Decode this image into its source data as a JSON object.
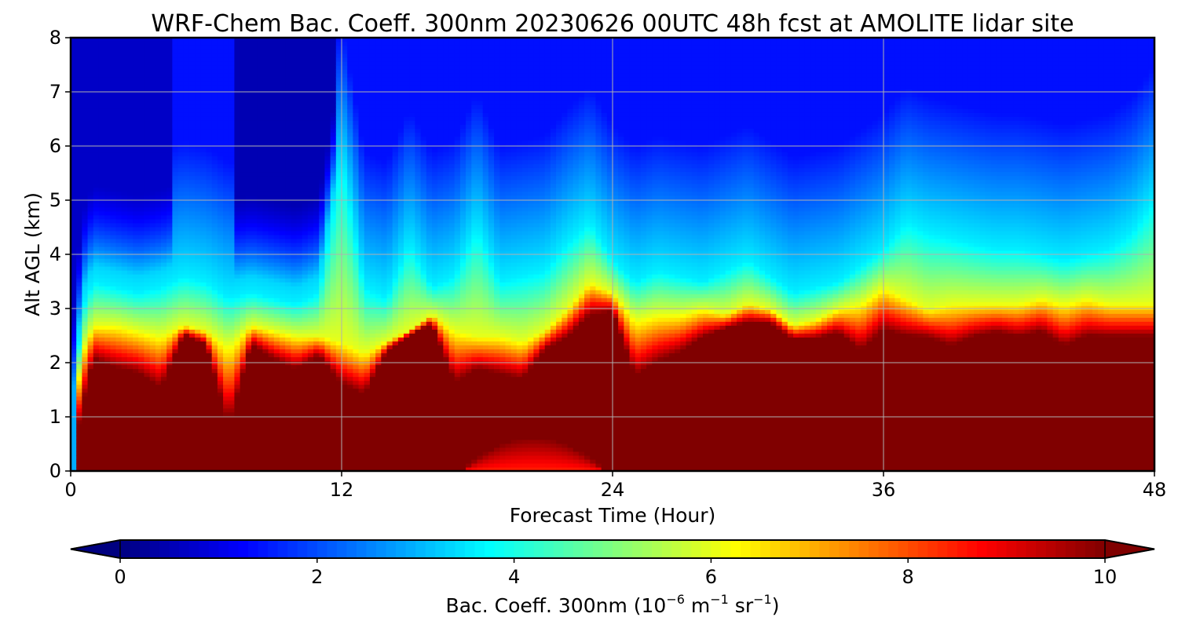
{
  "chart_data": {
    "type": "heatmap",
    "title": "WRF-Chem Bac. Coeff. 300nm  20230626 00UTC 48h fcst at AMOLITE lidar site",
    "xlabel": "Forecast Time (Hour)",
    "ylabel": "Alt AGL (km)",
    "xlim": [
      0,
      48
    ],
    "ylim": [
      0,
      8
    ],
    "xticks": [
      "0",
      "12",
      "24",
      "36",
      "48"
    ],
    "yticks": [
      "0",
      "1",
      "2",
      "3",
      "4",
      "5",
      "6",
      "7",
      "8"
    ],
    "grid": true,
    "colormap": "jet",
    "colorbar": {
      "placement": "bottom",
      "label_prefix": "Bac. Coeff. 300nm  (10",
      "label_exp1": "−6",
      "label_mid": " m",
      "label_exp2": "−1",
      "label_mid2": " sr",
      "label_exp3": "−1",
      "label_suffix": ")",
      "range": [
        0,
        10
      ],
      "ticks": [
        "0",
        "2",
        "4",
        "6",
        "8",
        "10"
      ],
      "extend": "both"
    },
    "x": [
      0,
      0.5,
      1,
      2,
      3,
      4,
      5,
      6,
      7,
      8,
      9,
      10,
      11,
      12,
      13,
      14,
      15,
      16,
      17,
      18,
      19,
      20,
      21,
      22,
      23,
      24,
      25,
      26,
      27,
      28,
      29,
      30,
      31,
      32,
      33,
      34,
      35,
      36,
      37,
      38,
      39,
      40,
      41,
      42,
      43,
      44,
      45,
      46,
      47,
      48
    ],
    "layer_top_km": [
      0.0,
      1.0,
      2.0,
      1.8,
      1.7,
      1.4,
      2.5,
      2.3,
      0.6,
      2.3,
      2.0,
      1.8,
      2.1,
      1.5,
      1.3,
      2.2,
      2.5,
      2.7,
      1.5,
      1.8,
      1.7,
      1.6,
      2.2,
      2.4,
      2.8,
      2.9,
      1.6,
      1.9,
      2.1,
      2.4,
      2.6,
      2.7,
      2.7,
      2.4,
      2.4,
      2.5,
      2.1,
      2.5,
      2.4,
      2.4,
      2.2,
      2.4,
      2.5,
      2.4,
      2.5,
      2.2,
      2.4,
      2.4,
      2.4,
      2.4
    ],
    "plume_top_km": [
      0.5,
      2.2,
      2.7,
      2.7,
      2.6,
      2.5,
      2.7,
      2.6,
      2.3,
      2.7,
      2.6,
      2.5,
      2.5,
      2.4,
      2.2,
      2.4,
      2.6,
      2.9,
      2.6,
      2.5,
      2.5,
      2.4,
      2.6,
      3.0,
      3.5,
      3.3,
      2.8,
      2.9,
      2.9,
      3.0,
      2.9,
      3.1,
      3.0,
      2.7,
      2.8,
      3.0,
      3.1,
      3.4,
      3.2,
      3.0,
      3.1,
      3.1,
      3.1,
      3.1,
      3.2,
      3.1,
      3.2,
      3.1,
      3.1,
      3.1
    ],
    "aerosol_top_km": [
      0.5,
      3.0,
      3.5,
      3.4,
      3.3,
      3.4,
      3.6,
      3.5,
      3.2,
      3.3,
      3.2,
      3.1,
      3.3,
      5.8,
      3.4,
      3.2,
      4.2,
      3.4,
      3.6,
      4.5,
      3.5,
      3.6,
      3.7,
      4.2,
      4.6,
      3.9,
      3.5,
      3.7,
      3.6,
      3.5,
      3.7,
      3.9,
      3.6,
      3.3,
      3.4,
      3.5,
      3.8,
      4.1,
      4.6,
      4.4,
      4.3,
      4.2,
      4.1,
      4.1,
      4.0,
      3.9,
      4.0,
      4.1,
      4.4,
      5.0
    ],
    "background_value": 1.4,
    "surface_pocket": {
      "x_center": 20.5,
      "x_halfwidth": 3.2,
      "top_km": 0.6,
      "value": 8.4
    },
    "clean_columns": [
      {
        "x_from": 7.2,
        "x_to": 11.8,
        "value": 0.5
      },
      {
        "x_from": 0,
        "x_to": 4.5,
        "value": 0.7
      }
    ]
  }
}
